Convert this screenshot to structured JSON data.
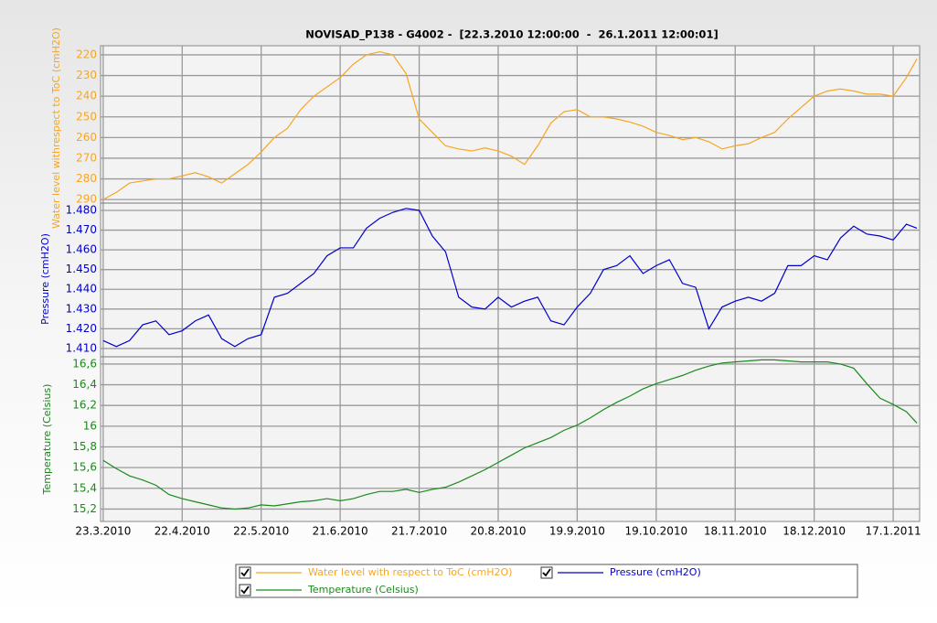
{
  "chart_data": {
    "type": "line",
    "title": "NOVISAD_P138 - G4002 -  [22.3.2010 12:00:00  -  26.1.2011 12:00:01]",
    "x": [
      "23.3.2010",
      "28.3.2010",
      "2.4.2010",
      "7.4.2010",
      "12.4.2010",
      "17.4.2010",
      "22.4.2010",
      "27.4.2010",
      "2.5.2010",
      "7.5.2010",
      "12.5.2010",
      "17.5.2010",
      "22.5.2010",
      "27.5.2010",
      "1.6.2010",
      "6.6.2010",
      "11.6.2010",
      "16.6.2010",
      "21.6.2010",
      "26.6.2010",
      "1.7.2010",
      "6.7.2010",
      "11.7.2010",
      "16.7.2010",
      "21.7.2010",
      "26.7.2010",
      "31.7.2010",
      "5.8.2010",
      "10.8.2010",
      "15.8.2010",
      "20.8.2010",
      "25.8.2010",
      "30.8.2010",
      "4.9.2010",
      "9.9.2010",
      "14.9.2010",
      "19.9.2010",
      "24.9.2010",
      "29.9.2010",
      "4.10.2010",
      "9.10.2010",
      "14.10.2010",
      "19.10.2010",
      "24.10.2010",
      "29.10.2010",
      "3.11.2010",
      "8.11.2010",
      "13.11.2010",
      "18.11.2010",
      "23.11.2010",
      "28.11.2010",
      "3.12.2010",
      "8.12.2010",
      "13.12.2010",
      "18.12.2010",
      "23.12.2010",
      "28.12.2010",
      "2.1.2011",
      "7.1.2011",
      "12.1.2011",
      "17.1.2011",
      "22.1.2011",
      "26.1.2011"
    ],
    "xlim": [
      "22.3.2010",
      "26.1.2011"
    ],
    "xticks": [
      "23.3.2010",
      "22.4.2010",
      "22.5.2010",
      "21.6.2010",
      "21.7.2010",
      "20.8.2010",
      "19.9.2010",
      "19.10.2010",
      "18.11.2010",
      "18.12.2010",
      "17.1.2011"
    ],
    "grid": true,
    "panels": [
      {
        "ylabel": "Water level withrespect to ToC (cmH2O)",
        "ylim": [
          215.6,
          291.7
        ],
        "invert_y": true,
        "yticks": [
          220,
          230,
          240,
          250,
          260,
          270,
          280,
          290
        ],
        "series": [
          {
            "name": "Water level with respect to ToC (cmH2O)",
            "color": "#f5a623",
            "values": [
              290,
              286.5,
              282,
              281,
              280,
              280,
              278.5,
              277,
              279,
              282,
              277.5,
              273,
              267,
              260,
              255.5,
              246.5,
              240,
              235.5,
              231,
              224.5,
              220,
              218.5,
              220,
              229,
              251,
              257.5,
              264,
              265.5,
              266.5,
              265,
              266.5,
              269,
              273,
              264,
              253,
              247.5,
              246.5,
              250,
              250,
              251,
              252.5,
              254.5,
              257.5,
              259,
              261,
              260,
              262,
              265.5,
              264,
              263,
              260,
              257.5,
              251,
              245.5,
              240,
              237.5,
              236.5,
              237.5,
              239,
              239,
              240,
              231,
              222
            ]
          }
        ]
      },
      {
        "ylabel": "Pressure  (cmH2O)",
        "ylim": [
          1.4058,
          1.4837
        ],
        "yticks": [
          {
            "value": 1.41,
            "label": "1.410"
          },
          {
            "value": 1.42,
            "label": "1.420"
          },
          {
            "value": 1.43,
            "label": "1.430"
          },
          {
            "value": 1.44,
            "label": "1.440"
          },
          {
            "value": 1.45,
            "label": "1.450"
          },
          {
            "value": 1.46,
            "label": "1.460"
          },
          {
            "value": 1.47,
            "label": "1.470"
          },
          {
            "value": 1.48,
            "label": "1.480"
          }
        ],
        "series": [
          {
            "name": "Pressure (cmH2O)",
            "color": "#0000cc",
            "values": [
              1.414,
              1.411,
              1.414,
              1.422,
              1.424,
              1.417,
              1.419,
              1.424,
              1.427,
              1.415,
              1.411,
              1.415,
              1.417,
              1.436,
              1.438,
              1.443,
              1.448,
              1.457,
              1.461,
              1.461,
              1.471,
              1.476,
              1.479,
              1.481,
              1.48,
              1.467,
              1.459,
              1.436,
              1.431,
              1.43,
              1.436,
              1.431,
              1.434,
              1.436,
              1.424,
              1.422,
              1.431,
              1.438,
              1.45,
              1.452,
              1.457,
              1.448,
              1.452,
              1.455,
              1.443,
              1.441,
              1.42,
              1.431,
              1.434,
              1.436,
              1.434,
              1.438,
              1.452,
              1.452,
              1.457,
              1.455,
              1.466,
              1.472,
              1.468,
              1.467,
              1.465,
              1.473,
              1.471
            ]
          }
        ]
      },
      {
        "ylabel": "Temperature (Celsius)",
        "ylim": [
          15.08,
          16.67
        ],
        "yticks": [
          {
            "value": 15.2,
            "label": "15,2"
          },
          {
            "value": 15.4,
            "label": "15,4"
          },
          {
            "value": 15.6,
            "label": "15,6"
          },
          {
            "value": 15.8,
            "label": "15,8"
          },
          16,
          {
            "value": 16.2,
            "label": "16,2"
          },
          {
            "value": 16.4,
            "label": "16,4"
          },
          {
            "value": 16.6,
            "label": "16,6"
          }
        ],
        "series": [
          {
            "name": "Temperature (Celsius)",
            "color": "#1a8a1a",
            "values": [
              15.67,
              15.59,
              15.52,
              15.48,
              15.43,
              15.34,
              15.3,
              15.27,
              15.24,
              15.21,
              15.2,
              15.21,
              15.24,
              15.23,
              15.25,
              15.27,
              15.28,
              15.3,
              15.28,
              15.3,
              15.34,
              15.37,
              15.37,
              15.39,
              15.36,
              15.39,
              15.41,
              15.46,
              15.52,
              15.58,
              15.65,
              15.72,
              15.79,
              15.84,
              15.89,
              15.96,
              16.01,
              16.08,
              16.16,
              16.23,
              16.29,
              16.36,
              16.41,
              16.45,
              16.49,
              16.54,
              16.58,
              16.61,
              16.62,
              16.63,
              16.64,
              16.64,
              16.63,
              16.62,
              16.62,
              16.62,
              16.6,
              16.56,
              16.41,
              16.27,
              16.21,
              16.14,
              16.03
            ]
          }
        ]
      }
    ]
  }
}
